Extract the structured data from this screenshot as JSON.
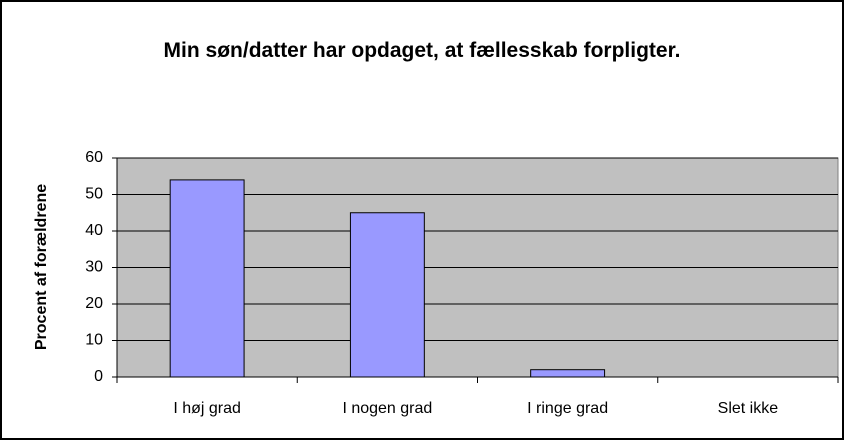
{
  "chart_data": {
    "type": "bar",
    "title": "Min søn/datter har opdaget, at fællesskab forpligter.",
    "y_label": "Procent af forældrene",
    "categories": [
      "I høj grad",
      "I nogen grad",
      "I ringe grad",
      "Slet ikke"
    ],
    "values": [
      54,
      45,
      2,
      0
    ],
    "color": "#9999ff",
    "ylim": [
      0,
      60
    ],
    "yticks": [
      0,
      10,
      20,
      30,
      40,
      50,
      60
    ],
    "grid": true
  }
}
